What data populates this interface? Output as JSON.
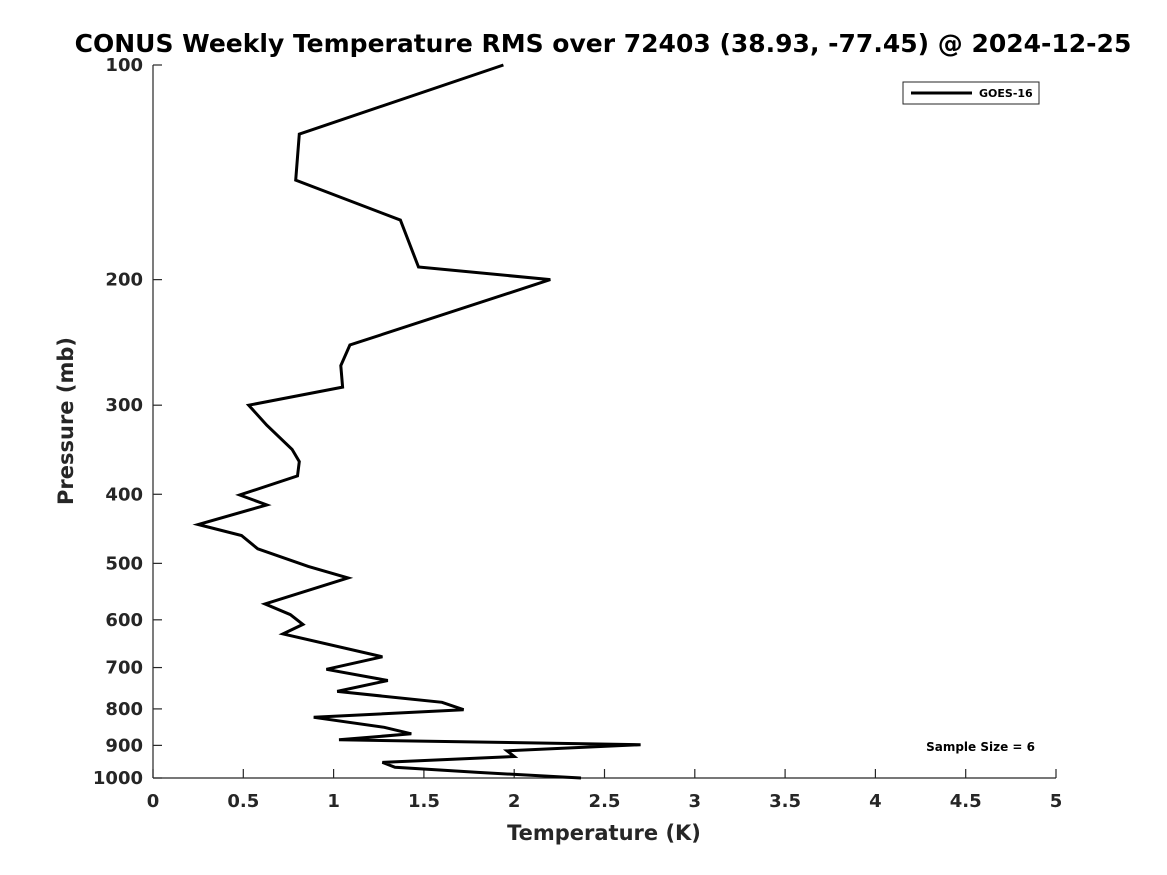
{
  "chart_data": {
    "type": "line",
    "title": "CONUS Weekly Temperature RMS over 72403 (38.93, -77.45) @ 2024-12-25",
    "xlabel": "Temperature (K)",
    "ylabel": "Pressure (mb)",
    "xlim": [
      0,
      5
    ],
    "ylim": [
      100,
      1000
    ],
    "y_scale": "log",
    "y_reversed": true,
    "grid": false,
    "x_ticks": [
      "0",
      "0.5",
      "1",
      "1.5",
      "2",
      "2.5",
      "3",
      "3.5",
      "4",
      "4.5",
      "5"
    ],
    "y_ticks": [
      "100",
      "200",
      "300",
      "400",
      "500",
      "600",
      "700",
      "800",
      "900",
      "1000"
    ],
    "legend": {
      "position": "top-right",
      "entries": [
        "GOES-16"
      ]
    },
    "annotation": "Sample Size = 6",
    "series": [
      {
        "name": "GOES-16",
        "color": "#000000",
        "x": [
          1.94,
          0.81,
          0.79,
          1.37,
          1.47,
          2.2,
          1.09,
          1.04,
          1.05,
          0.53,
          0.63,
          0.77,
          0.81,
          0.8,
          0.48,
          0.63,
          0.25,
          0.49,
          0.58,
          0.86,
          1.08,
          0.62,
          0.76,
          0.83,
          0.72,
          1.27,
          0.96,
          1.3,
          1.02,
          1.6,
          1.72,
          0.89,
          1.28,
          1.43,
          1.03,
          2.7,
          1.96,
          2.0,
          1.27,
          1.34,
          1.8,
          2.37
        ],
        "y": [
          100,
          125,
          145,
          165,
          192,
          200,
          247,
          264,
          283,
          300,
          320,
          346,
          360,
          377,
          401,
          414,
          441,
          457,
          477,
          505,
          524,
          570,
          590,
          609,
          628,
          676,
          704,
          730,
          756,
          783,
          802,
          822,
          849,
          867,
          884,
          898,
          916,
          933,
          951,
          966,
          982,
          1000
        ]
      }
    ]
  }
}
